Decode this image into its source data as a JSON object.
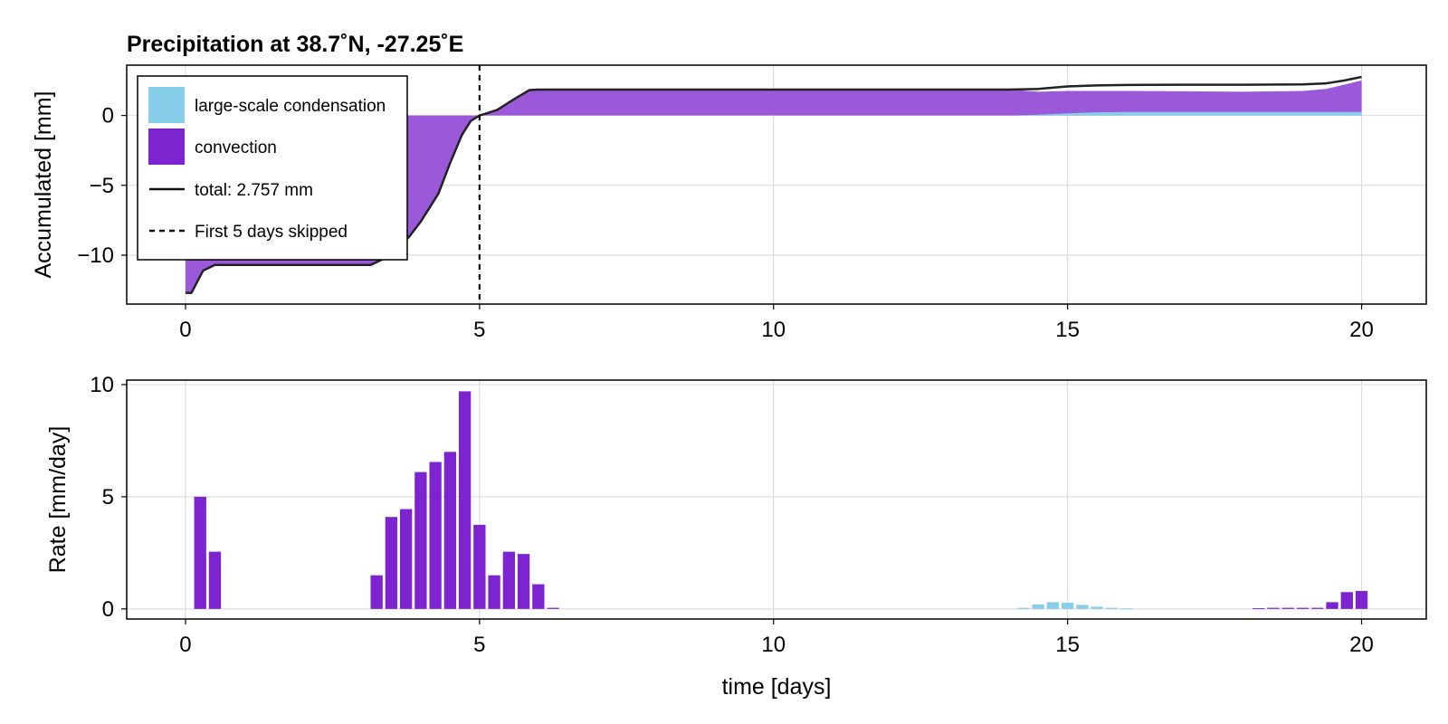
{
  "colors": {
    "large_scale": "#87ceeb",
    "convection": "#7b24d0",
    "convection_fill": "#9650d8",
    "total_line": "#222222"
  },
  "chart_data": [
    {
      "type": "area",
      "title": "Precipitation at 38.7˚N, -27.25˚E",
      "ylabel": "Accumulated [mm]",
      "xlabel": "",
      "xlim": [
        -1,
        21.1
      ],
      "ylim": [
        -13.5,
        3.6
      ],
      "xticks": [
        "0",
        "5",
        "10",
        "15",
        "20"
      ],
      "yticks": [
        "0",
        "−5",
        "−10"
      ],
      "grid": true,
      "legend_position": "top-left",
      "legend": [
        {
          "label": "large-scale condensation",
          "kind": "patch",
          "color": "#87ceeb"
        },
        {
          "label": "convection",
          "kind": "patch",
          "color": "#7b24d0"
        },
        {
          "label": "total: 2.757 mm",
          "kind": "line"
        },
        {
          "label": "First 5 days skipped",
          "kind": "dashed-line"
        }
      ],
      "vline_x": 5,
      "series": [
        {
          "name": "large-scale condensation",
          "x": [
            0,
            14,
            14.5,
            15,
            15.5,
            16,
            17,
            18,
            19,
            20
          ],
          "values": [
            0,
            0,
            0.05,
            0.15,
            0.22,
            0.25,
            0.25,
            0.25,
            0.25,
            0.25
          ]
        },
        {
          "name": "convection",
          "x": [
            0,
            0.1,
            0.3,
            0.5,
            1,
            2,
            3,
            3.15,
            3.4,
            3.6,
            3.8,
            4,
            4.3,
            4.5,
            4.7,
            4.85,
            5,
            5.1,
            5.3,
            5.6,
            5.85,
            6,
            8,
            10,
            12,
            14,
            14.5,
            15,
            15.5,
            16,
            17,
            18,
            19,
            19.4,
            19.7,
            20
          ],
          "values": [
            -12.7,
            -12.7,
            -11.1,
            -10.7,
            -10.7,
            -10.7,
            -10.7,
            -10.7,
            -10.2,
            -9.5,
            -8.7,
            -7.6,
            -5.6,
            -3.4,
            -1.4,
            -0.4,
            0,
            0.12,
            0.4,
            1.2,
            1.82,
            1.85,
            1.85,
            1.85,
            1.85,
            1.85,
            1.7,
            1.75,
            1.75,
            1.75,
            1.73,
            1.7,
            1.75,
            1.9,
            2.2,
            2.51
          ]
        },
        {
          "name": "total: 2.757 mm",
          "x": [
            0,
            0.1,
            0.3,
            0.5,
            1,
            2,
            3,
            3.15,
            3.4,
            3.6,
            3.8,
            4,
            4.3,
            4.5,
            4.7,
            4.85,
            5,
            5.1,
            5.3,
            5.6,
            5.85,
            6,
            8,
            10,
            12,
            14,
            14.5,
            15,
            15.5,
            16,
            17,
            18,
            19,
            19.4,
            19.7,
            20
          ],
          "values": [
            -12.7,
            -12.7,
            -11.1,
            -10.7,
            -10.7,
            -10.7,
            -10.7,
            -10.7,
            -10.2,
            -9.5,
            -8.7,
            -7.6,
            -5.6,
            -3.4,
            -1.4,
            -0.4,
            0,
            0.12,
            0.4,
            1.2,
            1.82,
            1.85,
            1.85,
            1.85,
            1.85,
            1.85,
            1.9,
            2.08,
            2.15,
            2.18,
            2.2,
            2.2,
            2.22,
            2.3,
            2.5,
            2.757
          ]
        }
      ]
    },
    {
      "type": "bar",
      "title": "",
      "ylabel": "Rate [mm/day]",
      "xlabel": "time [days]",
      "xlim": [
        -1,
        21.1
      ],
      "ylim": [
        -0.45,
        10.2
      ],
      "xticks": [
        "0",
        "5",
        "10",
        "15",
        "20"
      ],
      "yticks": [
        "0",
        "5",
        "10"
      ],
      "grid": true,
      "series": [
        {
          "name": "convection",
          "x": [
            0.25,
            0.5,
            3.25,
            3.5,
            3.75,
            4,
            4.25,
            4.5,
            4.75,
            5,
            5.25,
            5.5,
            5.75,
            6,
            6.25,
            18.25,
            18.5,
            18.75,
            19,
            19.25,
            19.5,
            19.75,
            20
          ],
          "values": [
            5.0,
            2.55,
            1.5,
            4.1,
            4.45,
            6.1,
            6.55,
            7.0,
            9.7,
            3.75,
            1.5,
            2.55,
            2.45,
            1.1,
            0.05,
            0.03,
            0.05,
            0.05,
            0.05,
            0.05,
            0.3,
            0.75,
            0.8
          ]
        },
        {
          "name": "large-scale condensation",
          "x": [
            14.25,
            14.5,
            14.75,
            15,
            15.25,
            15.5,
            15.75,
            16
          ],
          "values": [
            0.05,
            0.2,
            0.3,
            0.28,
            0.18,
            0.1,
            0.05,
            0.02
          ]
        }
      ]
    }
  ]
}
